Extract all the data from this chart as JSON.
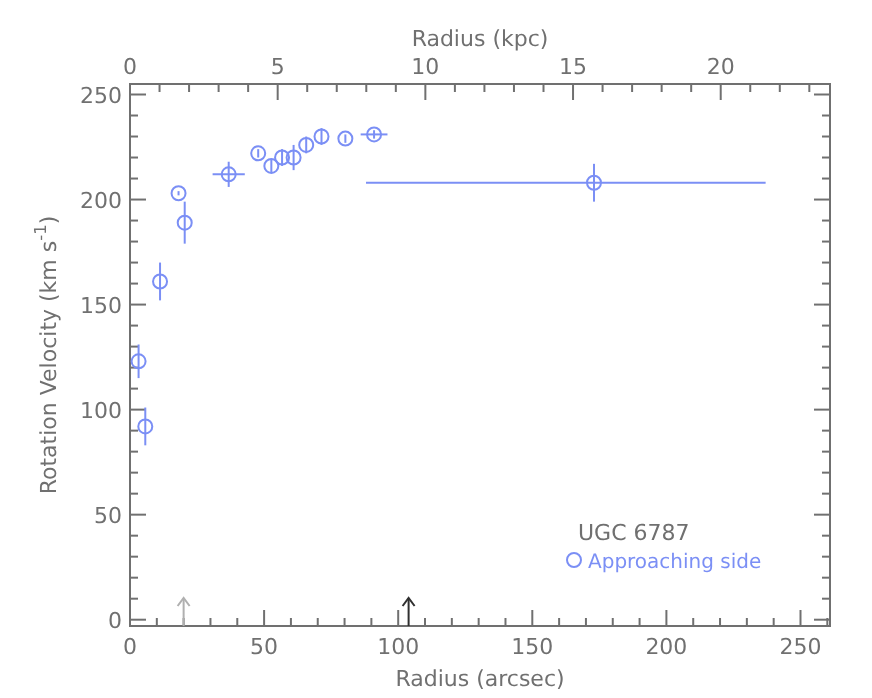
{
  "chart_data": {
    "type": "scatter",
    "xlabel": "Radius (arcsec)",
    "ylabel": "Rotation Velocity (km s$^{-1}$)",
    "x2label": "Radius (kpc)",
    "xlim": [
      0,
      261
    ],
    "ylim": [
      -3,
      255
    ],
    "x2lim": [
      0,
      23.7
    ],
    "xticks": [
      0,
      {
        "value": 10,
        "label": null
      },
      {
        "value": 20,
        "label": null
      },
      {
        "value": 30,
        "label": null
      },
      {
        "value": 40,
        "label": null
      },
      50,
      {
        "value": 60,
        "label": null
      },
      {
        "value": 70,
        "label": null
      },
      {
        "value": 80,
        "label": null
      },
      {
        "value": 90,
        "label": null
      },
      100,
      {
        "value": 110,
        "label": null
      },
      {
        "value": 120,
        "label": null
      },
      {
        "value": 130,
        "label": null
      },
      {
        "value": 140,
        "label": null
      },
      150,
      {
        "value": 160,
        "label": null
      },
      {
        "value": 170,
        "label": null
      },
      {
        "value": 180,
        "label": null
      },
      {
        "value": 190,
        "label": null
      },
      200,
      {
        "value": 210,
        "label": null
      },
      {
        "value": 220,
        "label": null
      },
      {
        "value": 230,
        "label": null
      },
      {
        "value": 240,
        "label": null
      },
      250,
      {
        "value": 260,
        "label": null
      }
    ],
    "x2ticks": [
      0,
      {
        "value": 1,
        "label": null
      },
      {
        "value": 2,
        "label": null
      },
      {
        "value": 3,
        "label": null
      },
      {
        "value": 4,
        "label": null
      },
      5,
      {
        "value": 6,
        "label": null
      },
      {
        "value": 7,
        "label": null
      },
      {
        "value": 8,
        "label": null
      },
      {
        "value": 9,
        "label": null
      },
      10,
      {
        "value": 11,
        "label": null
      },
      {
        "value": 12,
        "label": null
      },
      {
        "value": 13,
        "label": null
      },
      {
        "value": 14,
        "label": null
      },
      15,
      {
        "value": 16,
        "label": null
      },
      {
        "value": 17,
        "label": null
      },
      {
        "value": 18,
        "label": null
      },
      {
        "value": 19,
        "label": null
      },
      20,
      {
        "value": 21,
        "label": null
      },
      {
        "value": 22,
        "label": null
      },
      {
        "value": 23,
        "label": null
      }
    ],
    "yticks": [
      0,
      {
        "value": 10,
        "label": null
      },
      {
        "value": 20,
        "label": null
      },
      {
        "value": 30,
        "label": null
      },
      {
        "value": 40,
        "label": null
      },
      50,
      {
        "value": 60,
        "label": null
      },
      {
        "value": 70,
        "label": null
      },
      {
        "value": 80,
        "label": null
      },
      {
        "value": 90,
        "label": null
      },
      100,
      {
        "value": 110,
        "label": null
      },
      {
        "value": 120,
        "label": null
      },
      {
        "value": 130,
        "label": null
      },
      {
        "value": 140,
        "label": null
      },
      150,
      {
        "value": 160,
        "label": null
      },
      {
        "value": 170,
        "label": null
      },
      {
        "value": 180,
        "label": null
      },
      {
        "value": 190,
        "label": null
      },
      200,
      {
        "value": 210,
        "label": null
      },
      {
        "value": 220,
        "label": null
      },
      {
        "value": 230,
        "label": null
      },
      {
        "value": 240,
        "label": null
      },
      250
    ],
    "series": [
      {
        "name": "Approaching side",
        "color": "#7b8ff5",
        "x": [
          3.2,
          5.7,
          11.2,
          18.1,
          20.4,
          36.8,
          47.8,
          52.7,
          56.7,
          61,
          65.7,
          71.4,
          80.3,
          91,
          173
        ],
        "values": [
          123,
          92,
          161,
          203,
          189,
          212,
          222,
          216,
          220,
          220,
          226,
          230,
          229,
          231,
          208
        ],
        "errors": [
          8,
          9,
          9,
          1,
          10,
          6,
          2,
          3,
          4,
          6,
          4,
          4,
          2,
          2,
          9
        ],
        "xerrors": [
          null,
          null,
          null,
          null,
          null,
          6,
          null,
          null,
          null,
          null,
          null,
          null,
          null,
          5,
          [
            88,
            237
          ]
        ]
      }
    ],
    "marker": "circle",
    "legend": "bottom right",
    "grid": false,
    "annotations": [
      "UGC 6787"
    ]
  }
}
